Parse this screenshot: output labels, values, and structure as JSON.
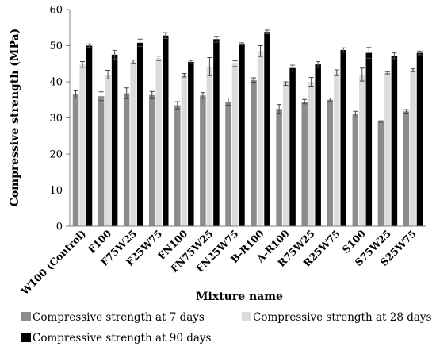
{
  "chart_data": {
    "type": "bar",
    "xlabel": "Mixture name",
    "ylabel": "Compressive strength (MPa)",
    "ylim": [
      0,
      60
    ],
    "yticks": [
      0,
      10,
      20,
      30,
      40,
      50,
      60
    ],
    "grid": false,
    "legend_position": "bottom",
    "categories": [
      "W100 (Control)",
      "F100",
      "F75W25",
      "F25W75",
      "FN100",
      "FN75W25",
      "FN25W75",
      "B-R100",
      "A-R100",
      "R75W25",
      "R25W75",
      "S100",
      "S75W25",
      "S25W75"
    ],
    "series": [
      {
        "name": "Compressive strength at 7 days",
        "color": "#8c8c8c",
        "values": [
          36.5,
          36.0,
          36.8,
          36.3,
          33.5,
          36.2,
          34.5,
          40.5,
          32.5,
          34.5,
          35.0,
          31.0,
          29.0,
          31.8
        ],
        "errors": [
          1.0,
          1.2,
          1.5,
          1.0,
          1.0,
          0.8,
          1.0,
          0.6,
          1.2,
          0.6,
          0.5,
          0.8,
          0.2,
          0.5
        ]
      },
      {
        "name": "Compressive strength at 28 days",
        "color": "#dcdcdc",
        "values": [
          44.8,
          42.0,
          45.5,
          46.5,
          41.8,
          44.2,
          45.0,
          48.5,
          39.5,
          40.0,
          42.5,
          42.0,
          42.5,
          43.2
        ],
        "errors": [
          0.8,
          1.2,
          0.5,
          0.6,
          0.5,
          2.5,
          0.8,
          1.5,
          0.5,
          1.2,
          0.8,
          1.8,
          0.3,
          0.4
        ]
      },
      {
        "name": "Compressive strength at 90 days",
        "color": "#000000",
        "values": [
          50.0,
          47.5,
          50.8,
          52.8,
          45.5,
          51.8,
          50.5,
          53.8,
          43.8,
          44.8,
          48.8,
          48.0,
          47.2,
          48.0
        ],
        "errors": [
          0.5,
          1.2,
          1.0,
          0.8,
          0.4,
          0.8,
          0.3,
          0.5,
          0.8,
          0.8,
          0.6,
          1.5,
          0.8,
          0.5
        ]
      }
    ]
  }
}
